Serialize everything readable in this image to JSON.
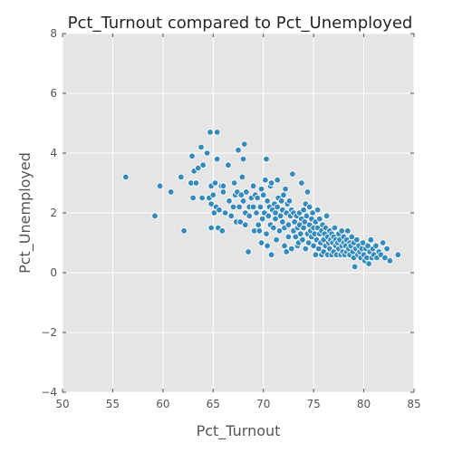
{
  "chart_data": {
    "type": "scatter",
    "title": "Pct_Turnout compared to Pct_Unemployed",
    "xlabel": "Pct_Turnout",
    "ylabel": "Pct_Unemployed",
    "xlim": [
      50,
      85
    ],
    "ylim": [
      -4,
      8
    ],
    "xticks": [
      50,
      55,
      60,
      65,
      70,
      75,
      80,
      85
    ],
    "yticks": [
      -4,
      -2,
      0,
      2,
      4,
      6,
      8
    ],
    "xtick_labels": [
      "50",
      "55",
      "60",
      "65",
      "70",
      "75",
      "80",
      "85"
    ],
    "ytick_labels": [
      "−4",
      "−2",
      "0",
      "2",
      "4",
      "6",
      "8"
    ],
    "grid": true,
    "background_color": "#e5e5e5",
    "point_color": "#348abd",
    "points": [
      [
        56.3,
        3.2
      ],
      [
        59.2,
        1.9
      ],
      [
        59.7,
        2.9
      ],
      [
        60.8,
        2.7
      ],
      [
        61.8,
        3.2
      ],
      [
        62.1,
        1.4
      ],
      [
        62.8,
        3.0
      ],
      [
        62.9,
        3.9
      ],
      [
        63.0,
        2.5
      ],
      [
        63.1,
        3.4
      ],
      [
        63.3,
        3.0
      ],
      [
        63.5,
        3.5
      ],
      [
        63.8,
        4.2
      ],
      [
        63.9,
        2.5
      ],
      [
        64.0,
        3.6
      ],
      [
        64.4,
        4.0
      ],
      [
        64.6,
        2.5
      ],
      [
        64.7,
        4.7
      ],
      [
        64.8,
        2.9
      ],
      [
        64.8,
        2.3
      ],
      [
        64.8,
        1.5
      ],
      [
        65.0,
        2.6
      ],
      [
        65.1,
        2.0
      ],
      [
        65.2,
        3.0
      ],
      [
        65.3,
        2.2
      ],
      [
        65.4,
        4.7
      ],
      [
        65.4,
        3.8
      ],
      [
        65.5,
        1.5
      ],
      [
        65.6,
        2.1
      ],
      [
        65.8,
        2.9
      ],
      [
        65.9,
        1.4
      ],
      [
        66.0,
        2.7
      ],
      [
        66.0,
        2.9
      ],
      [
        66.2,
        2.0
      ],
      [
        66.5,
        3.6
      ],
      [
        66.6,
        2.4
      ],
      [
        66.8,
        1.9
      ],
      [
        67.0,
        2.2
      ],
      [
        67.1,
        3.0
      ],
      [
        67.2,
        2.6
      ],
      [
        67.3,
        1.7
      ],
      [
        67.4,
        2.7
      ],
      [
        67.5,
        4.1
      ],
      [
        67.6,
        2.2
      ],
      [
        67.7,
        1.7
      ],
      [
        67.8,
        2.6
      ],
      [
        67.9,
        3.2
      ],
      [
        68.0,
        2.4
      ],
      [
        68.0,
        3.8
      ],
      [
        68.1,
        4.3
      ],
      [
        68.2,
        2.0
      ],
      [
        68.2,
        1.6
      ],
      [
        68.3,
        2.7
      ],
      [
        68.5,
        0.7
      ],
      [
        68.6,
        2.2
      ],
      [
        68.6,
        1.9
      ],
      [
        68.8,
        2.5
      ],
      [
        69.0,
        2.2
      ],
      [
        69.0,
        2.9
      ],
      [
        69.1,
        1.4
      ],
      [
        69.2,
        2.6
      ],
      [
        69.3,
        2.0
      ],
      [
        69.4,
        2.5
      ],
      [
        69.5,
        1.6
      ],
      [
        69.6,
        1.4
      ],
      [
        69.7,
        2.2
      ],
      [
        69.8,
        2.8
      ],
      [
        69.8,
        1.0
      ],
      [
        69.9,
        1.8
      ],
      [
        70.0,
        2.6
      ],
      [
        70.1,
        2.0
      ],
      [
        70.2,
        3.1
      ],
      [
        70.3,
        3.8
      ],
      [
        70.3,
        1.3
      ],
      [
        70.4,
        0.9
      ],
      [
        70.4,
        2.4
      ],
      [
        70.5,
        1.9
      ],
      [
        70.6,
        2.2
      ],
      [
        70.7,
        1.6
      ],
      [
        70.7,
        2.9
      ],
      [
        70.8,
        0.6
      ],
      [
        70.8,
        3.0
      ],
      [
        70.9,
        2.1
      ],
      [
        71.0,
        1.5
      ],
      [
        71.1,
        2.3
      ],
      [
        71.2,
        1.8
      ],
      [
        71.2,
        2.0
      ],
      [
        71.3,
        1.1
      ],
      [
        71.4,
        3.1
      ],
      [
        71.4,
        2.2
      ],
      [
        71.5,
        2.5
      ],
      [
        71.6,
        1.4
      ],
      [
        71.7,
        1.9
      ],
      [
        71.8,
        2.4
      ],
      [
        71.9,
        2.1
      ],
      [
        71.9,
        1.7
      ],
      [
        72.0,
        2.6
      ],
      [
        72.1,
        0.9
      ],
      [
        72.1,
        1.5
      ],
      [
        72.2,
        2.8
      ],
      [
        72.3,
        2.0
      ],
      [
        72.3,
        0.7
      ],
      [
        72.4,
        2.3
      ],
      [
        72.5,
        1.2
      ],
      [
        72.5,
        1.6
      ],
      [
        72.6,
        2.4
      ],
      [
        72.7,
        1.9
      ],
      [
        72.8,
        2.1
      ],
      [
        72.8,
        0.8
      ],
      [
        72.9,
        3.3
      ],
      [
        73.0,
        1.4
      ],
      [
        73.0,
        2.0
      ],
      [
        73.1,
        1.7
      ],
      [
        73.2,
        1.2
      ],
      [
        73.3,
        1.9
      ],
      [
        73.4,
        0.9
      ],
      [
        73.4,
        1.5
      ],
      [
        73.5,
        1.0
      ],
      [
        73.6,
        2.0
      ],
      [
        73.6,
        1.6
      ],
      [
        73.7,
        1.3
      ],
      [
        73.8,
        1.8
      ],
      [
        73.8,
        3.0
      ],
      [
        73.9,
        1.1
      ],
      [
        74.0,
        1.5
      ],
      [
        74.0,
        2.1
      ],
      [
        74.1,
        1.7
      ],
      [
        74.2,
        0.8
      ],
      [
        74.2,
        2.3
      ],
      [
        74.3,
        1.9
      ],
      [
        74.4,
        1.3
      ],
      [
        74.4,
        2.7
      ],
      [
        74.5,
        1.0
      ],
      [
        74.6,
        1.6
      ],
      [
        74.6,
        2.2
      ],
      [
        74.7,
        1.4
      ],
      [
        74.8,
        1.8
      ],
      [
        74.8,
        1.2
      ],
      [
        74.9,
        2.0
      ],
      [
        75.0,
        1.5
      ],
      [
        75.0,
        0.9
      ],
      [
        75.1,
        1.3
      ],
      [
        75.2,
        1.7
      ],
      [
        75.2,
        0.6
      ],
      [
        75.3,
        1.1
      ],
      [
        75.4,
        1.5
      ],
      [
        75.4,
        2.1
      ],
      [
        75.5,
        0.8
      ],
      [
        75.6,
        1.3
      ],
      [
        75.6,
        1.8
      ],
      [
        75.7,
        1.0
      ],
      [
        75.8,
        0.6
      ],
      [
        75.8,
        1.4
      ],
      [
        75.9,
        1.6
      ],
      [
        76.0,
        1.1
      ],
      [
        76.0,
        0.7
      ],
      [
        76.1,
        1.3
      ],
      [
        76.2,
        1.5
      ],
      [
        76.2,
        0.9
      ],
      [
        76.3,
        1.9
      ],
      [
        76.4,
        1.2
      ],
      [
        76.4,
        0.6
      ],
      [
        76.5,
        1.0
      ],
      [
        76.6,
        1.4
      ],
      [
        76.6,
        0.8
      ],
      [
        76.7,
        1.1
      ],
      [
        76.8,
        1.3
      ],
      [
        76.8,
        0.6
      ],
      [
        76.9,
        1.0
      ],
      [
        77.0,
        1.2
      ],
      [
        77.0,
        0.7
      ],
      [
        77.1,
        1.5
      ],
      [
        77.2,
        0.9
      ],
      [
        77.2,
        1.1
      ],
      [
        77.3,
        0.6
      ],
      [
        77.4,
        1.0
      ],
      [
        77.5,
        1.3
      ],
      [
        77.5,
        0.8
      ],
      [
        77.6,
        1.1
      ],
      [
        77.7,
        0.6
      ],
      [
        77.8,
        0.9
      ],
      [
        77.8,
        1.4
      ],
      [
        77.9,
        0.7
      ],
      [
        78.0,
        1.0
      ],
      [
        78.0,
        1.2
      ],
      [
        78.1,
        0.6
      ],
      [
        78.2,
        0.9
      ],
      [
        78.3,
        1.1
      ],
      [
        78.3,
        0.7
      ],
      [
        78.4,
        1.4
      ],
      [
        78.5,
        0.8
      ],
      [
        78.6,
        1.0
      ],
      [
        78.6,
        0.6
      ],
      [
        78.7,
        0.9
      ],
      [
        78.8,
        1.2
      ],
      [
        78.9,
        0.7
      ],
      [
        79.0,
        0.5
      ],
      [
        79.0,
        1.0
      ],
      [
        79.1,
        0.2
      ],
      [
        79.2,
        0.8
      ],
      [
        79.3,
        1.1
      ],
      [
        79.4,
        0.6
      ],
      [
        79.5,
        0.9
      ],
      [
        79.6,
        0.7
      ],
      [
        79.7,
        0.5
      ],
      [
        79.8,
        0.8
      ],
      [
        79.9,
        1.0
      ],
      [
        80.0,
        0.6
      ],
      [
        80.1,
        0.4
      ],
      [
        80.2,
        0.8
      ],
      [
        80.3,
        0.5
      ],
      [
        80.4,
        0.9
      ],
      [
        80.5,
        0.3
      ],
      [
        80.6,
        0.7
      ],
      [
        80.7,
        1.1
      ],
      [
        80.8,
        0.5
      ],
      [
        80.9,
        0.8
      ],
      [
        81.0,
        0.6
      ],
      [
        81.2,
        0.9
      ],
      [
        81.3,
        0.5
      ],
      [
        81.5,
        0.7
      ],
      [
        81.7,
        0.6
      ],
      [
        81.9,
        1.0
      ],
      [
        82.1,
        0.5
      ],
      [
        82.3,
        0.8
      ],
      [
        82.6,
        0.4
      ],
      [
        83.4,
        0.6
      ]
    ]
  }
}
